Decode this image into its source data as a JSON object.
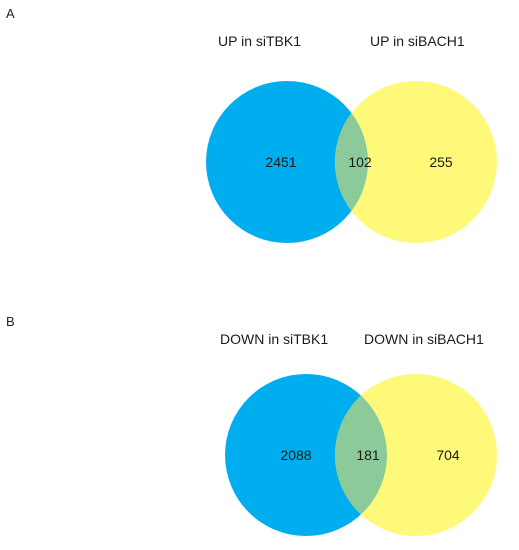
{
  "colors": {
    "left_set": "#00aeef",
    "right_set": "#fff97a",
    "overlap": "#8ccb99"
  },
  "panels": [
    {
      "letter": "A",
      "left_label": "UP in siTBK1",
      "right_label": "UP in siBACH1",
      "left_only": "2451",
      "overlap": "102",
      "right_only": "255"
    },
    {
      "letter": "B",
      "left_label": "DOWN in siTBK1",
      "right_label": "DOWN in siBACH1",
      "left_only": "2088",
      "overlap": "181",
      "right_only": "704"
    }
  ]
}
